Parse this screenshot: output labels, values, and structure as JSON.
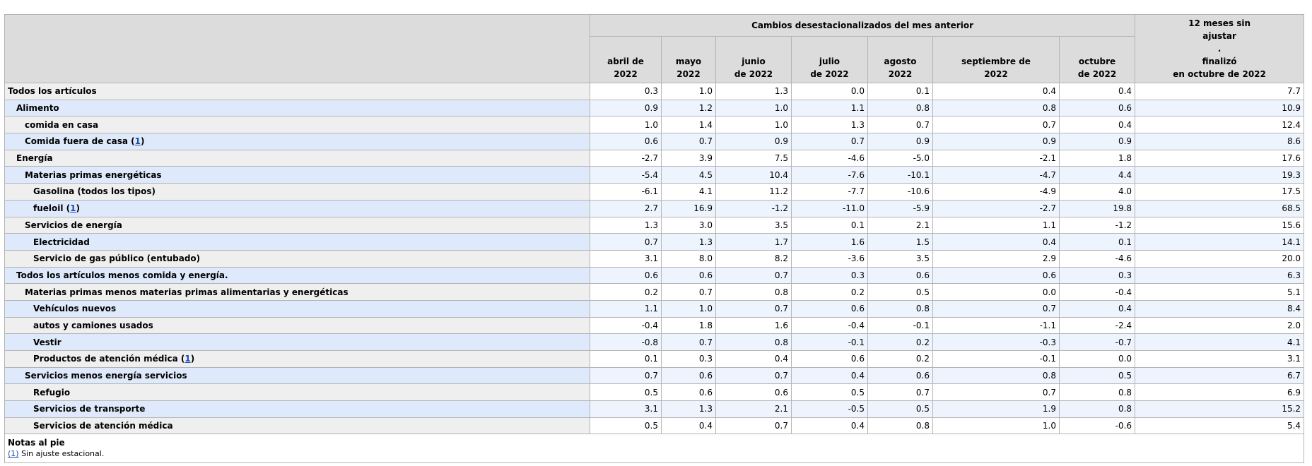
{
  "table": {
    "group_header": "Cambios desestacionalizados del mes anterior",
    "columns": [
      {
        "l1": "abril de",
        "l2": "2022"
      },
      {
        "l1": "mayo",
        "l2": "2022"
      },
      {
        "l1": "junio",
        "l2": "de 2022"
      },
      {
        "l1": "julio",
        "l2": "de 2022"
      },
      {
        "l1": "agosto",
        "l2": "2022"
      },
      {
        "l1": "septiembre de",
        "l2": "2022"
      },
      {
        "l1": "octubre",
        "l2": "de 2022"
      }
    ],
    "last_column": {
      "l1": "12 meses sin",
      "l2": "ajustar",
      "l3": ".",
      "l4": "finalizó",
      "l5": "en octubre de 2022"
    },
    "rows": [
      {
        "label": "Todos los artículos",
        "values": [
          "0.3",
          "1.0",
          "1.3",
          "0.0",
          "0.1",
          "0.4",
          "0.4",
          "7.7"
        ]
      },
      {
        "label": "Alimento",
        "values": [
          "0.9",
          "1.2",
          "1.0",
          "1.1",
          "0.8",
          "0.8",
          "0.6",
          "10.9"
        ]
      },
      {
        "label": "comida en casa",
        "values": [
          "1.0",
          "1.4",
          "1.0",
          "1.3",
          "0.7",
          "0.7",
          "0.4",
          "12.4"
        ]
      },
      {
        "label": "Comida fuera de casa",
        "footnote": "1",
        "values": [
          "0.6",
          "0.7",
          "0.9",
          "0.7",
          "0.9",
          "0.9",
          "0.9",
          "8.6"
        ]
      },
      {
        "label": "Energía",
        "values": [
          "-2.7",
          "3.9",
          "7.5",
          "-4.6",
          "-5.0",
          "-2.1",
          "1.8",
          "17.6"
        ]
      },
      {
        "label": "Materias primas energéticas",
        "values": [
          "-5.4",
          "4.5",
          "10.4",
          "-7.6",
          "-10.1",
          "-4.7",
          "4.4",
          "19.3"
        ]
      },
      {
        "label": "Gasolina (todos los tipos)",
        "values": [
          "-6.1",
          "4.1",
          "11.2",
          "-7.7",
          "-10.6",
          "-4.9",
          "4.0",
          "17.5"
        ]
      },
      {
        "label": "fueloil",
        "footnote": "1",
        "values": [
          "2.7",
          "16.9",
          "-1.2",
          "-11.0",
          "-5.9",
          "-2.7",
          "19.8",
          "68.5"
        ]
      },
      {
        "label": "Servicios de energía",
        "values": [
          "1.3",
          "3.0",
          "3.5",
          "0.1",
          "2.1",
          "1.1",
          "-1.2",
          "15.6"
        ]
      },
      {
        "label": "Electricidad",
        "values": [
          "0.7",
          "1.3",
          "1.7",
          "1.6",
          "1.5",
          "0.4",
          "0.1",
          "14.1"
        ]
      },
      {
        "label": "Servicio de gas público (entubado)",
        "values": [
          "3.1",
          "8.0",
          "8.2",
          "-3.6",
          "3.5",
          "2.9",
          "-4.6",
          "20.0"
        ]
      },
      {
        "label": "Todos los artículos menos comida y energía.",
        "values": [
          "0.6",
          "0.6",
          "0.7",
          "0.3",
          "0.6",
          "0.6",
          "0.3",
          "6.3"
        ]
      },
      {
        "label": "Materias primas menos materias primas alimentarias y energéticas",
        "values": [
          "0.2",
          "0.7",
          "0.8",
          "0.2",
          "0.5",
          "0.0",
          "-0.4",
          "5.1"
        ]
      },
      {
        "label": "Vehículos nuevos",
        "values": [
          "1.1",
          "1.0",
          "0.7",
          "0.6",
          "0.8",
          "0.7",
          "0.4",
          "8.4"
        ]
      },
      {
        "label": "autos y camiones usados",
        "values": [
          "-0.4",
          "1.8",
          "1.6",
          "-0.4",
          "-0.1",
          "-1.1",
          "-2.4",
          "2.0"
        ]
      },
      {
        "label": "Vestir",
        "values": [
          "-0.8",
          "0.7",
          "0.8",
          "-0.1",
          "0.2",
          "-0.3",
          "-0.7",
          "4.1"
        ]
      },
      {
        "label": "Productos de atención médica",
        "footnote": "1",
        "values": [
          "0.1",
          "0.3",
          "0.4",
          "0.6",
          "0.2",
          "-0.1",
          "0.0",
          "3.1"
        ]
      },
      {
        "label": "Servicios menos energía servicios",
        "values": [
          "0.7",
          "0.6",
          "0.7",
          "0.4",
          "0.6",
          "0.8",
          "0.5",
          "6.7"
        ]
      },
      {
        "label": "Refugio",
        "values": [
          "0.5",
          "0.6",
          "0.6",
          "0.5",
          "0.7",
          "0.7",
          "0.8",
          "6.9"
        ]
      },
      {
        "label": "Servicios de transporte",
        "values": [
          "3.1",
          "1.3",
          "2.1",
          "-0.5",
          "0.5",
          "1.9",
          "0.8",
          "15.2"
        ]
      },
      {
        "label": "Servicios de atención médica",
        "values": [
          "0.5",
          "0.4",
          "0.7",
          "0.4",
          "0.8",
          "1.0",
          "-0.6",
          "5.4"
        ]
      }
    ]
  },
  "footnotes": {
    "title": "Notas al pie",
    "items": [
      {
        "ref": "(1)",
        "text": " Sin ajuste estacional."
      }
    ]
  }
}
